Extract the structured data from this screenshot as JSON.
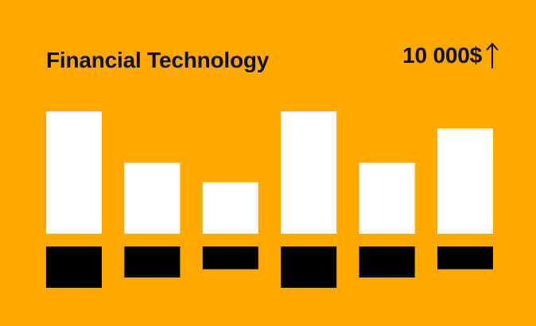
{
  "card": {
    "background": "#FFA800",
    "title": "Financial Technology",
    "amount": "10 000$",
    "amount_icon": "arrow-up-icon"
  },
  "chart_data": {
    "type": "bar",
    "categories": [
      "",
      "",
      "",
      "",
      "",
      ""
    ],
    "series": [
      {
        "values": [
          100,
          58,
          42,
          100,
          58,
          86
        ],
        "color": "#FFFFFF"
      },
      {
        "values": [
          100,
          75,
          55,
          100,
          75,
          55
        ],
        "color": "#000000"
      }
    ],
    "title": "",
    "xlabel": "",
    "ylabel": "",
    "grid": false,
    "legend": "none"
  }
}
